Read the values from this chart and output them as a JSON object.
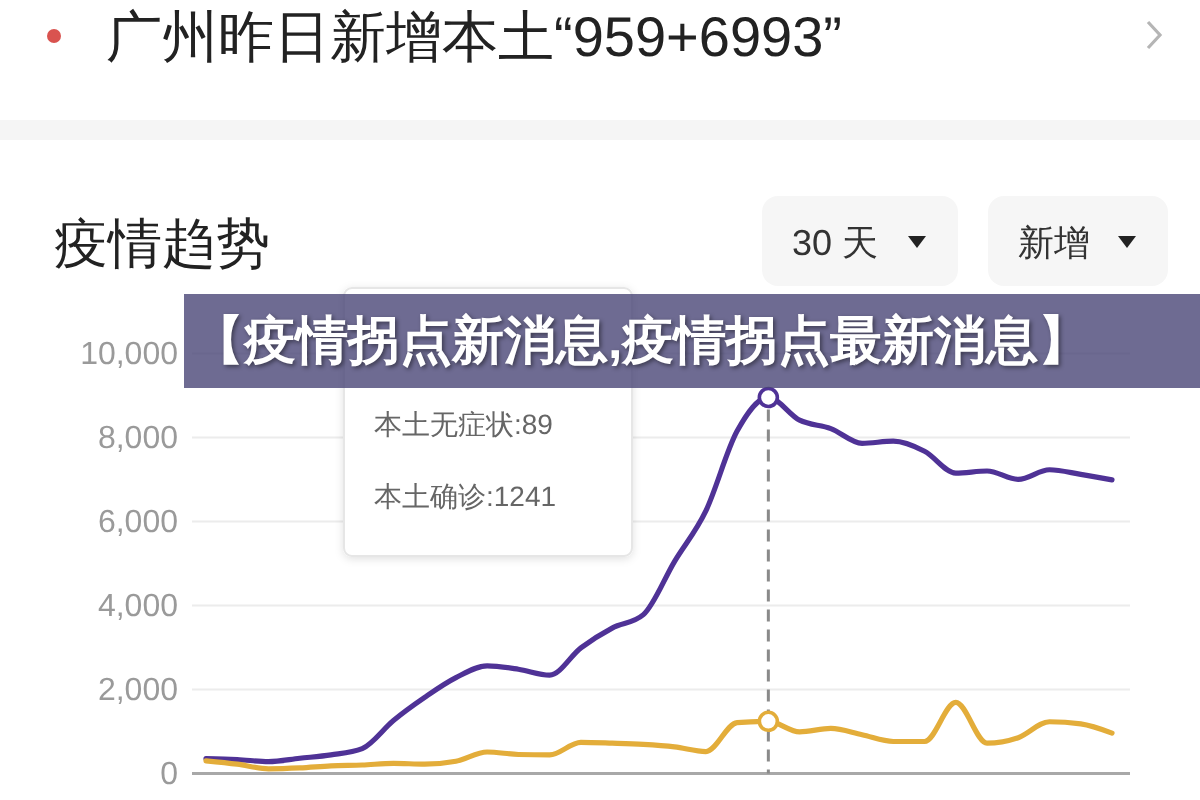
{
  "chart_data": {
    "type": "line",
    "title": "疫情趋势",
    "annotations": [
      "广州昨日新增本土“959+6993”",
      "30 天",
      "新增",
      "本土无症状:89",
      "本土确诊:1241",
      "【疫情拐点新消息,疫情拐点最新消息】"
    ],
    "categories": [
      null,
      null,
      null,
      null,
      null,
      null,
      null,
      null,
      null,
      null,
      null,
      null,
      null,
      null,
      null,
      null,
      null,
      null,
      null,
      null,
      null,
      null,
      null,
      null,
      null,
      null,
      null,
      null,
      null,
      null
    ],
    "series": [
      {
        "color": "#4f3296",
        "values": [
          350,
          330,
          280,
          360,
          440,
          590,
          1260,
          1810,
          2280,
          2560,
          2480,
          2340,
          2990,
          3460,
          3780,
          5050,
          6250,
          8150,
          8950,
          8410,
          8210,
          7860,
          7910,
          7670,
          7150,
          7200,
          7000,
          7230,
          7120,
          6990
        ]
      },
      {
        "color": "#e3ad3a",
        "values": [
          300,
          220,
          110,
          130,
          180,
          200,
          240,
          220,
          290,
          510,
          450,
          440,
          740,
          720,
          690,
          630,
          520,
          1210,
          1240,
          990,
          1070,
          920,
          760,
          760,
          1690,
          720,
          850,
          1230,
          1180,
          960
        ]
      }
    ],
    "ylim": [
      0,
      10000
    ],
    "yticks": [
      0,
      {
        "value": 2000,
        "label": "2,000"
      },
      {
        "value": 4000,
        "label": "4,000"
      },
      {
        "value": 6000,
        "label": "6,000"
      },
      {
        "value": 8000,
        "label": "8,000"
      },
      {
        "value": 10000,
        "label": "10,000"
      }
    ],
    "grid": "y",
    "tick_labels": "y",
    "line_style": "solid"
  }
}
